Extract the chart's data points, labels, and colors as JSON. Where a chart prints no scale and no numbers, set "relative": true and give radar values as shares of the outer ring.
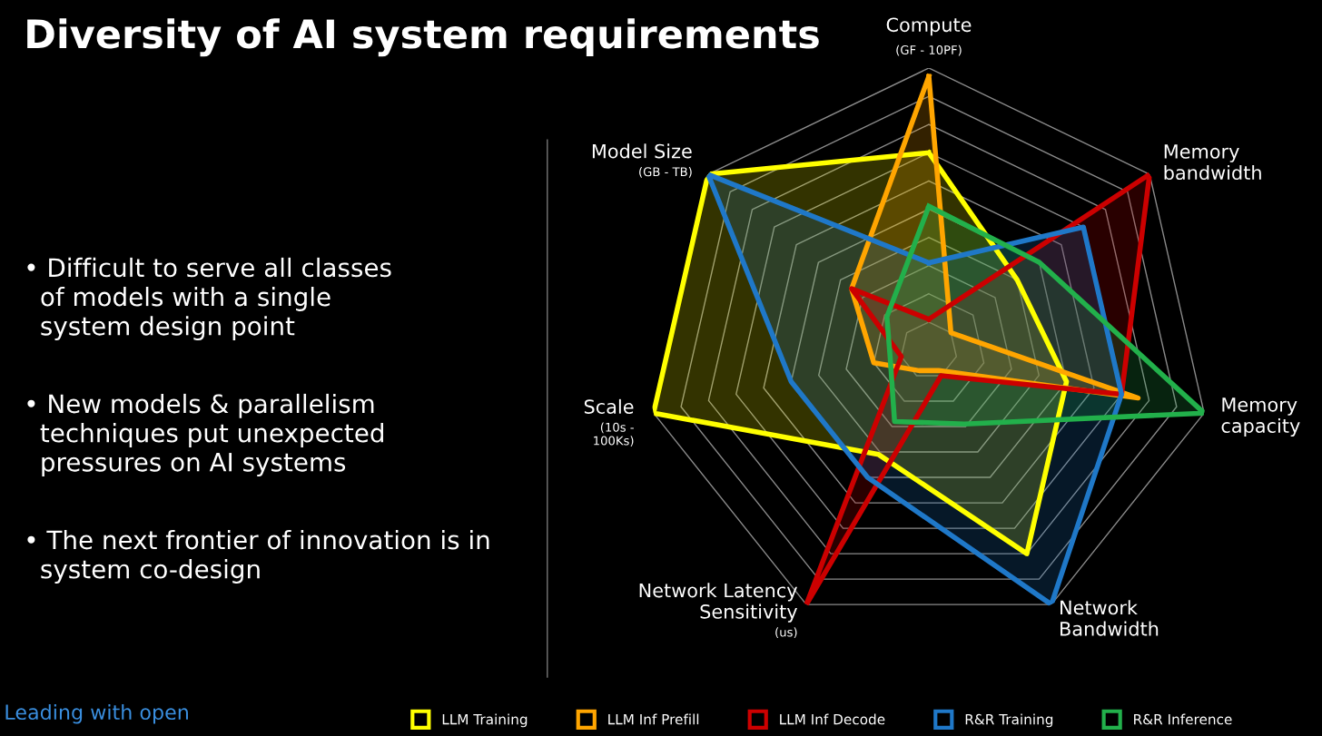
{
  "chart_data": {
    "type": "radar",
    "relative": true,
    "title": "Diversity of AI system requirements",
    "categories": [
      "Compute\n(GF - 10PF)",
      "Memory\nbandwidth",
      "Memory\ncapacity",
      "Network\nBandwidth",
      "Network Latency\nSensitivity\n(us)",
      "Scale\n(10s -\n100Ks)",
      "Model Size\n(GB - TB)"
    ],
    "series": [
      {
        "name": "LLM Training",
        "color": "#ffff00",
        "values": [
          0.7,
          0.4,
          0.5,
          0.8,
          0.41,
          1.0,
          1.0
        ]
      },
      {
        "name": "LLM Inf Prefill",
        "color": "#ffa500",
        "values": [
          0.97,
          0.1,
          0.76,
          0.08,
          0.08,
          0.2,
          0.35
        ]
      },
      {
        "name": "LLM Inf Decode",
        "color": "#cc0000",
        "values": [
          0.11,
          1.0,
          0.7,
          0.1,
          1.0,
          0.1,
          0.35
        ]
      },
      {
        "name": "R&R Training",
        "color": "#1f78c8",
        "values": [
          0.31,
          0.7,
          0.7,
          1.0,
          0.5,
          0.5,
          1.0
        ]
      },
      {
        "name": "R&R Inference",
        "color": "#22b04b",
        "values": [
          0.51,
          0.5,
          1.0,
          0.29,
          0.28,
          0.14,
          0.19
        ]
      }
    ],
    "grid": true,
    "legend": "bottom",
    "annotations": [
      "• Difficult to serve all classes\n  of models with a single\n  system design point",
      "• New models & parallelism\n  techniques put unexpected\n  pressures on AI systems",
      "• The next frontier of innovation is in\n  system co-design",
      "Leading with open"
    ]
  }
}
